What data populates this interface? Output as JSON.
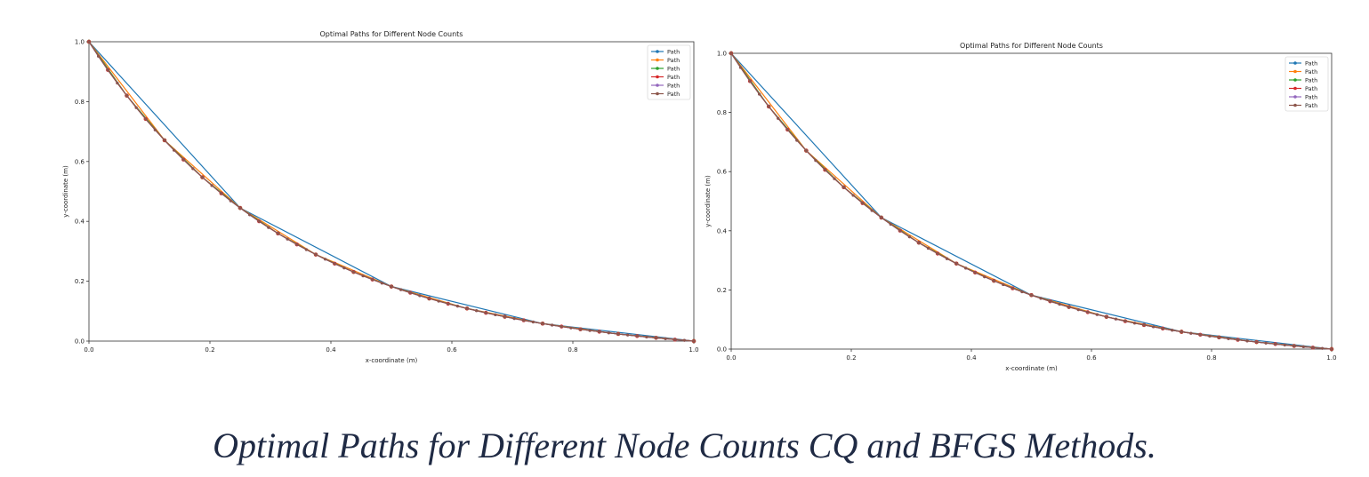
{
  "caption": "Optimal Paths for Different Node Counts CQ and BFGS Methods.",
  "chart_data": [
    {
      "type": "line",
      "title": "Optimal Paths for Different Node Counts",
      "xlabel": "x-coordinate (m)",
      "ylabel": "y-coordinate (m)",
      "xlim": [
        0,
        1
      ],
      "ylim": [
        0,
        1
      ],
      "xticks": [
        "0.0",
        "0.2",
        "0.4",
        "0.6",
        "0.8",
        "1.0"
      ],
      "yticks": [
        "0.0",
        "0.2",
        "0.4",
        "0.6",
        "0.8",
        "1.0"
      ],
      "legend": "top-right",
      "series": [
        {
          "name": "Path",
          "color": "#1f77b4",
          "n": 4
        },
        {
          "name": "Path",
          "color": "#ff7f0e",
          "n": 8
        },
        {
          "name": "Path",
          "color": "#2ca02c",
          "n": 16
        },
        {
          "name": "Path",
          "color": "#d62728",
          "n": 32
        },
        {
          "name": "Path",
          "color": "#9467bd",
          "n": 64
        },
        {
          "name": "Path",
          "color": "#8c564b",
          "n": 64
        }
      ]
    },
    {
      "type": "line",
      "title": "Optimal Paths for Different Node Counts",
      "xlabel": "x-coordinate (m)",
      "ylabel": "y-coordinate (m)",
      "xlim": [
        0,
        1
      ],
      "ylim": [
        0,
        1
      ],
      "xticks": [
        "0.0",
        "0.2",
        "0.4",
        "0.6",
        "0.8",
        "1.0"
      ],
      "yticks": [
        "0.0",
        "0.2",
        "0.4",
        "0.6",
        "0.8",
        "1.0"
      ],
      "legend": "top-right",
      "series": [
        {
          "name": "Path",
          "color": "#1f77b4",
          "n": 4
        },
        {
          "name": "Path",
          "color": "#ff7f0e",
          "n": 8
        },
        {
          "name": "Path",
          "color": "#2ca02c",
          "n": 16
        },
        {
          "name": "Path",
          "color": "#d62728",
          "n": 32
        },
        {
          "name": "Path",
          "color": "#9467bd",
          "n": 64
        },
        {
          "name": "Path",
          "color": "#8c564b",
          "n": 64
        }
      ]
    }
  ]
}
